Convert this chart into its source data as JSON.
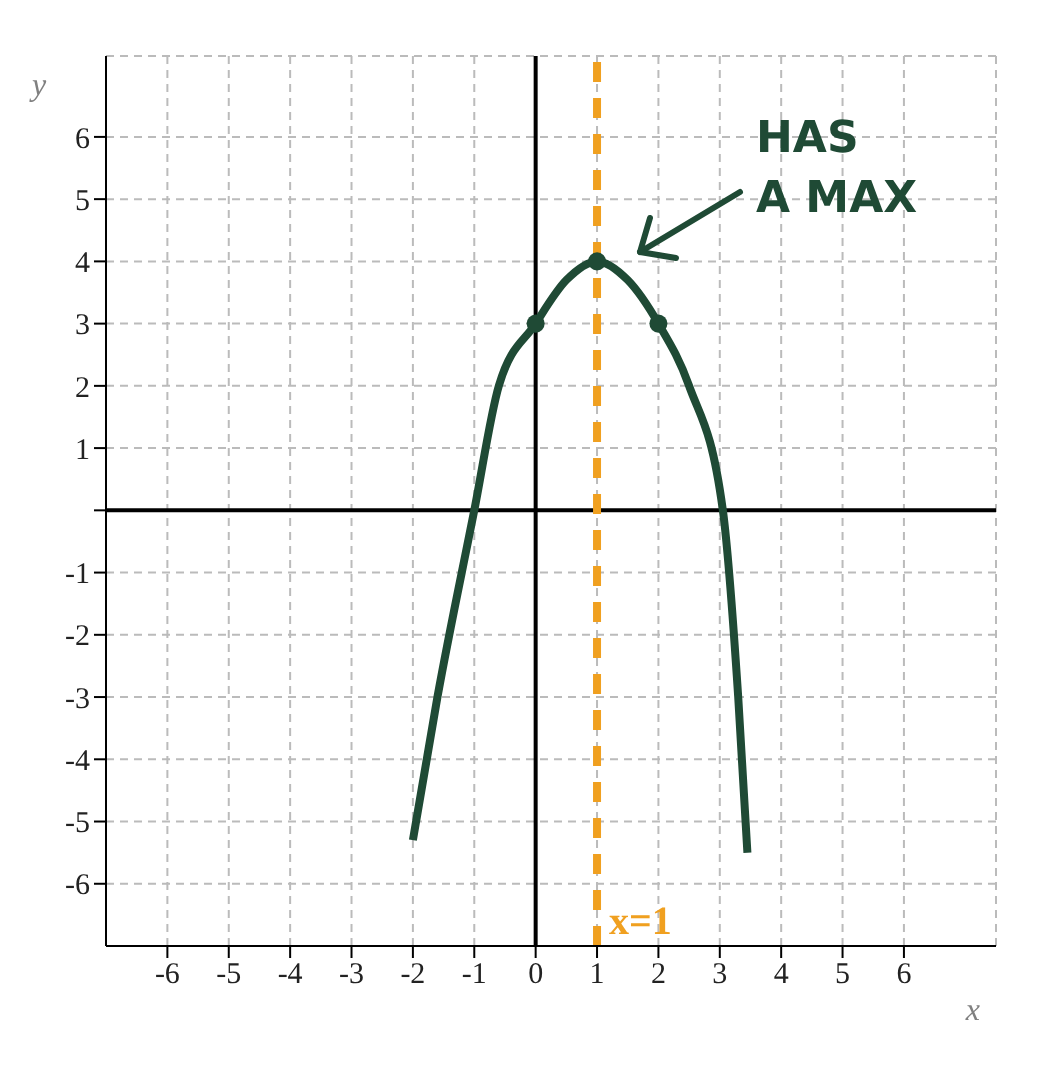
{
  "chart_data": {
    "type": "line",
    "xlabel": "x",
    "ylabel": "y",
    "xlim": [
      -7,
      7.5
    ],
    "ylim": [
      -7,
      7.3
    ],
    "xticks": [
      -6,
      -5,
      -4,
      -3,
      -2,
      -1,
      0,
      1,
      2,
      3,
      4,
      5,
      6
    ],
    "yticks": [
      -6,
      -5,
      -4,
      -3,
      -2,
      -1,
      {
        "value": 0,
        "label": null
      },
      1,
      2,
      3,
      4,
      5,
      6
    ],
    "grid": true,
    "series": [
      {
        "color": "#1f4a35",
        "marker": "none",
        "x": [
          -2,
          -1.6,
          -1,
          -0.6,
          0,
          0.5,
          1,
          1.5,
          2,
          2.5,
          3.05,
          3.3,
          3.45
        ],
        "values": [
          -5.3,
          -3,
          0,
          2,
          3,
          3.7,
          4,
          3.7,
          3,
          2,
          0,
          -3,
          -5.5
        ]
      },
      {
        "type": "scatter",
        "color": "#1f4a35",
        "marker": "circle",
        "x": [
          0,
          1,
          2
        ],
        "values": [
          3,
          4,
          3
        ]
      }
    ],
    "ref_lines": [
      {
        "axis": "x",
        "value": 1,
        "label": "x=1",
        "color": "#f0a020",
        "line_style": "dashed"
      }
    ],
    "annotations": [
      "HAS A MAX"
    ]
  }
}
